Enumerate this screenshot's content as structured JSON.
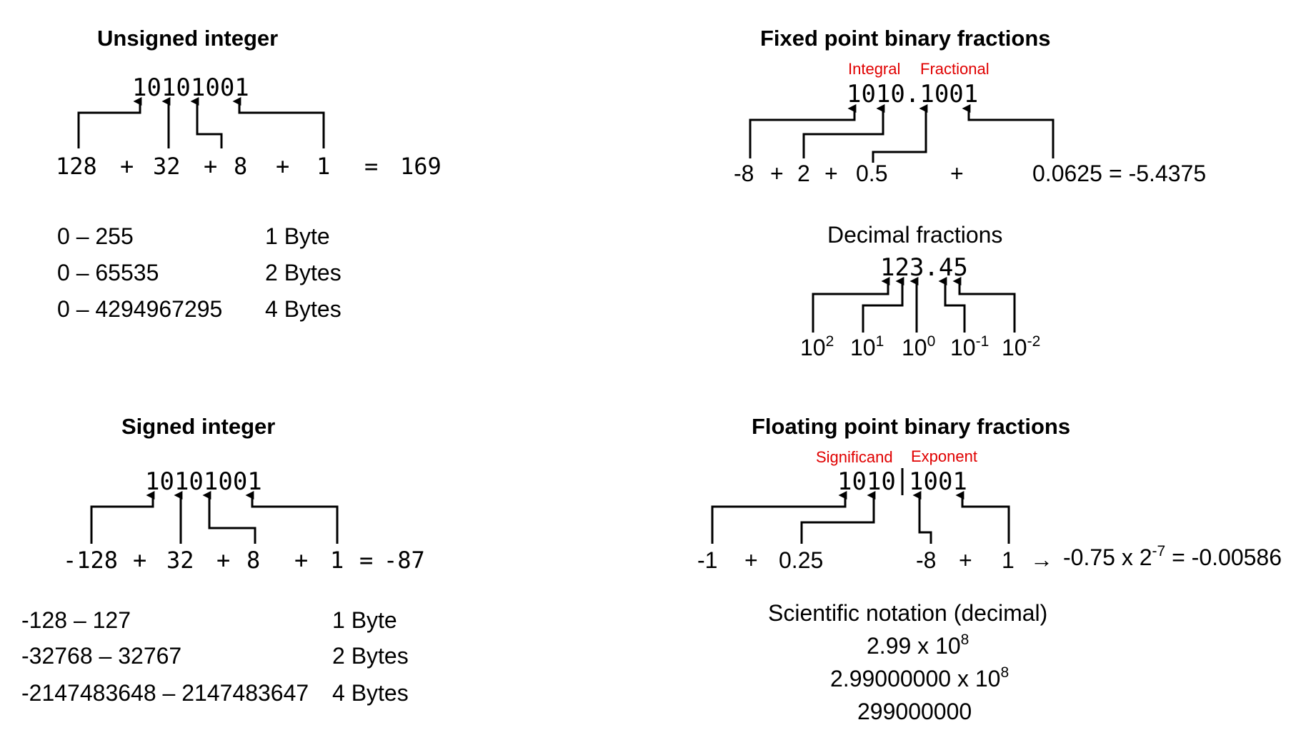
{
  "unsigned": {
    "title": "Unsigned integer",
    "bits": "10101001",
    "terms": [
      "128",
      "+",
      "32",
      "+",
      "8",
      "+",
      "1",
      "=",
      "169"
    ],
    "ranges": [
      {
        "range": "0 – 255",
        "size": "1 Byte"
      },
      {
        "range": "0 – 65535",
        "size": "2 Bytes"
      },
      {
        "range": "0 – 4294967295",
        "size": "4 Bytes"
      }
    ]
  },
  "signed": {
    "title": "Signed integer",
    "bits": "10101001",
    "terms": [
      "-128",
      "+",
      "32",
      "+",
      "8",
      "+",
      "1",
      "=",
      "-87"
    ],
    "ranges": [
      {
        "range": "-128 – 127",
        "size": "1 Byte"
      },
      {
        "range": "-32768 – 32767",
        "size": "2 Bytes"
      },
      {
        "range": "-2147483648 – 2147483647",
        "size": "4 Bytes"
      }
    ]
  },
  "fixed": {
    "title": "Fixed point binary fractions",
    "label_integral": "Integral",
    "label_fractional": "Fractional",
    "bits": "1010.1001",
    "terms": [
      "-8",
      "+",
      "2",
      "+",
      "0.5",
      "+",
      "0.0625",
      "= -5.4375"
    ]
  },
  "decimal": {
    "title": "Decimal fractions",
    "value": "123.45",
    "powers": [
      {
        "base": "10",
        "exp": "2"
      },
      {
        "base": "10",
        "exp": "1"
      },
      {
        "base": "10",
        "exp": "0"
      },
      {
        "base": "10",
        "exp": "-1"
      },
      {
        "base": "10",
        "exp": "-2"
      }
    ]
  },
  "floating": {
    "title": "Floating point binary fractions",
    "label_significand": "Significand",
    "label_exponent": "Exponent",
    "significand_bits": "1010",
    "exponent_bits": "1001",
    "terms": [
      "-1",
      "+",
      "0.25",
      "-8",
      "+",
      "1"
    ],
    "arrow": "→",
    "result_prefix": "-0.75 x 2",
    "result_exp": "-7",
    "result_suffix": " = -0.00586"
  },
  "scientific": {
    "title": "Scientific notation (decimal)",
    "line1_base": "2.99 x 10",
    "line1_exp": "8",
    "line2_base": "2.99000000 x 10",
    "line2_exp": "8",
    "line3": "299000000"
  }
}
